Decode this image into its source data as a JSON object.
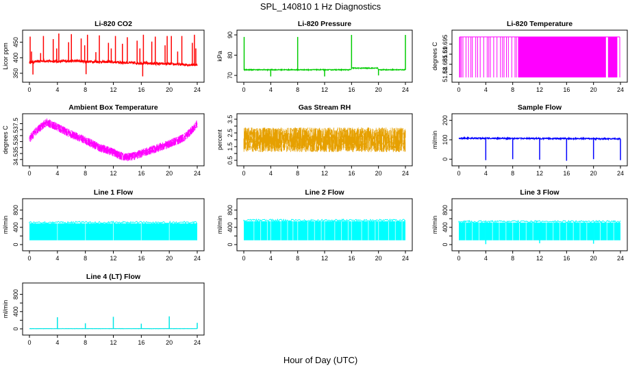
{
  "figure": {
    "title": "SPL_140810  1 Hz Diagnostics",
    "xlabel": "Hour of Day (UTC)"
  },
  "chart_data": [
    {
      "type": "line",
      "title": "Li-820 CO2",
      "ylabel": "Licor ppm",
      "color": "#ff0000",
      "xticks": [
        0,
        4,
        8,
        12,
        16,
        20,
        24
      ],
      "yticks": [
        350,
        400,
        450
      ],
      "ylim": [
        330,
        480
      ],
      "base": [
        [
          0,
          385
        ],
        [
          2,
          390
        ],
        [
          4,
          388
        ],
        [
          6,
          390
        ],
        [
          8,
          388
        ],
        [
          10,
          387
        ],
        [
          12,
          386
        ],
        [
          14,
          384
        ],
        [
          16,
          383
        ],
        [
          18,
          381
        ],
        [
          20,
          380
        ],
        [
          22,
          378
        ],
        [
          24,
          377
        ]
      ],
      "noise": 4,
      "spikes": [
        [
          0.1,
          468
        ],
        [
          0.3,
          420
        ],
        [
          0.5,
          346
        ],
        [
          1.6,
          415
        ],
        [
          2,
          470
        ],
        [
          3.4,
          460
        ],
        [
          3.9,
          430
        ],
        [
          4.2,
          478
        ],
        [
          5.6,
          450
        ],
        [
          6,
          476
        ],
        [
          7.4,
          462
        ],
        [
          7.9,
          440
        ],
        [
          8.1,
          347
        ],
        [
          8.3,
          474
        ],
        [
          9.5,
          418
        ],
        [
          10,
          472
        ],
        [
          11.3,
          448
        ],
        [
          11.7,
          430
        ],
        [
          12.3,
          470
        ],
        [
          13.3,
          445
        ],
        [
          14,
          466
        ],
        [
          15.4,
          455
        ],
        [
          15.8,
          430
        ],
        [
          16.2,
          340
        ],
        [
          16.3,
          474
        ],
        [
          17.5,
          452
        ],
        [
          18,
          468
        ],
        [
          19.4,
          440
        ],
        [
          19.7,
          470
        ],
        [
          20.3,
          470
        ],
        [
          21.2,
          420
        ],
        [
          21.8,
          470
        ],
        [
          23.3,
          448
        ],
        [
          23.6,
          474
        ],
        [
          23.8,
          430
        ]
      ]
    },
    {
      "type": "line",
      "title": "Li-820 Pressure",
      "ylabel": "kPa",
      "color": "#00cc00",
      "xticks": [
        0,
        4,
        8,
        12,
        16,
        20,
        24
      ],
      "yticks": [
        70,
        80,
        90
      ],
      "ylim": [
        68,
        91
      ],
      "base": [
        [
          0,
          72.8
        ],
        [
          15.9,
          72.8
        ],
        [
          16,
          73.6
        ],
        [
          19.9,
          73.6
        ],
        [
          20,
          72.8
        ],
        [
          24,
          72.8
        ]
      ],
      "noise": 0.2,
      "spikes": [
        [
          0.05,
          89
        ],
        [
          4,
          69.5
        ],
        [
          8,
          89
        ],
        [
          12,
          69.5
        ],
        [
          16,
          90
        ],
        [
          20,
          70
        ],
        [
          24,
          90
        ]
      ]
    },
    {
      "type": "line",
      "title": "Li-820 Temperature",
      "ylabel": "degrees C",
      "color": "#ff00ff",
      "xticks": [
        0,
        4,
        8,
        12,
        16,
        20,
        24
      ],
      "yticks": [
        51.68,
        51.685,
        51.69,
        51.695
      ],
      "ylim": [
        51.6775,
        51.7005
      ],
      "levels": [
        51.6785,
        51.6985
      ],
      "dense_ranges": [
        [
          8.9,
          21.8
        ],
        [
          22.2,
          23.5
        ]
      ],
      "sparse_range": [
        0.2,
        8.9
      ]
    },
    {
      "type": "line",
      "title": "Ambient Box Temperature",
      "ylabel": "degrees C",
      "color": "#ff00ff",
      "xticks": [
        0,
        4,
        8,
        12,
        16,
        20,
        24
      ],
      "yticks": [
        34.5,
        35,
        35.5,
        36,
        36.5,
        37,
        37.5
      ],
      "ylim": [
        34.2,
        38.1
      ],
      "base": [
        [
          0,
          36.2
        ],
        [
          1,
          36.9
        ],
        [
          2,
          37.4
        ],
        [
          2.5,
          37.6
        ],
        [
          4,
          37.2
        ],
        [
          6,
          36.6
        ],
        [
          8,
          36.1
        ],
        [
          10,
          35.5
        ],
        [
          12,
          35.1
        ],
        [
          13,
          34.8
        ],
        [
          14,
          34.7
        ],
        [
          15,
          34.8
        ],
        [
          16,
          35.0
        ],
        [
          18,
          35.4
        ],
        [
          20,
          35.8
        ],
        [
          22,
          36.3
        ],
        [
          23,
          36.8
        ],
        [
          24,
          37.5
        ]
      ],
      "band": 0.35
    },
    {
      "type": "scatter",
      "title": "Gas Stream RH",
      "ylabel": "percent",
      "color": "#e6a000",
      "xticks": [
        0,
        4,
        8,
        12,
        16,
        20,
        24
      ],
      "yticks": [
        0.5,
        1,
        1.5,
        2,
        2.5,
        3,
        3.5
      ],
      "ylim": [
        0.3,
        3.7
      ],
      "base": [
        [
          0,
          2.0
        ],
        [
          24,
          2.0
        ]
      ],
      "band": 0.9
    },
    {
      "type": "line",
      "title": "Sample Flow",
      "ylabel": "ml/min",
      "color": "#0000ff",
      "xticks": [
        0,
        4,
        8,
        12,
        16,
        20,
        24
      ],
      "yticks": [
        0,
        100,
        200
      ],
      "ylim": [
        -20,
        220
      ],
      "base": [
        [
          0,
          108
        ],
        [
          24,
          105
        ]
      ],
      "noise": 3,
      "spikes": [
        [
          4,
          -5
        ],
        [
          8,
          0
        ],
        [
          12,
          -3
        ],
        [
          16,
          -8
        ],
        [
          20,
          0
        ],
        [
          24,
          -5
        ]
      ]
    },
    {
      "type": "area",
      "title": "Line 1 Flow",
      "ylabel": "ml/min",
      "color": "#00ffff",
      "xticks": [
        0,
        4,
        8,
        12,
        16,
        20,
        24
      ],
      "yticks": [
        0,
        200,
        400,
        600,
        800
      ],
      "ylim": [
        -80,
        1000
      ],
      "fill_low": 100,
      "fill_high": 490,
      "gaps": [
        4,
        8,
        12,
        16,
        20
      ],
      "end": 24
    },
    {
      "type": "area",
      "title": "Line 2 Flow",
      "ylabel": "ml/min",
      "color": "#00ffff",
      "xticks": [
        0,
        4,
        8,
        12,
        16,
        20,
        24
      ],
      "yticks": [
        0,
        200,
        400,
        600,
        800
      ],
      "ylim": [
        -80,
        1000
      ],
      "fill_low": 100,
      "fill_high": 540,
      "gaps": [
        1.5,
        2.5,
        3.5,
        4,
        5.5,
        6.5,
        7.3,
        8,
        9.5,
        10.5,
        11.5,
        12,
        13.5,
        14.5,
        15.5,
        16,
        17.5,
        18.5,
        19.5,
        20,
        21.5,
        22.5,
        23.5
      ],
      "end": 24
    },
    {
      "type": "area",
      "title": "Line 3 Flow",
      "ylabel": "ml/min",
      "color": "#00ffff",
      "xticks": [
        0,
        4,
        8,
        12,
        16,
        20,
        24
      ],
      "yticks": [
        0,
        200,
        400,
        600,
        800
      ],
      "ylim": [
        -80,
        1000
      ],
      "fill_low": 100,
      "fill_high": 510,
      "gaps": [
        1,
        2,
        3,
        4,
        5,
        6,
        7,
        8,
        9,
        10,
        11,
        12,
        13,
        14,
        15,
        16,
        17,
        18,
        19,
        20,
        21,
        22,
        23
      ],
      "end": 24,
      "dips": [
        [
          4,
          10
        ],
        [
          12,
          30
        ],
        [
          20,
          20
        ]
      ]
    },
    {
      "type": "line",
      "title": "Line 4 (LT) Flow",
      "ylabel": "ml/min",
      "color": "#00e5e5",
      "xticks": [
        0,
        4,
        8,
        12,
        16,
        20,
        24
      ],
      "yticks": [
        0,
        200,
        400,
        600,
        800
      ],
      "ylim": [
        -80,
        1000
      ],
      "base": [
        [
          0,
          5
        ],
        [
          24,
          5
        ]
      ],
      "noise": 2,
      "spikes": [
        [
          4,
          270
        ],
        [
          8,
          130
        ],
        [
          12,
          280
        ],
        [
          16,
          120
        ],
        [
          20,
          290
        ],
        [
          24,
          140
        ]
      ]
    }
  ]
}
